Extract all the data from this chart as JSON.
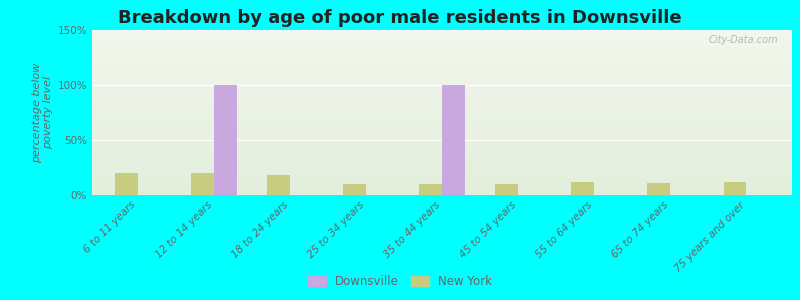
{
  "title": "Breakdown by age of poor male residents in Downsville",
  "categories": [
    "6 to 11 years",
    "12 to 14 years",
    "18 to 24 years",
    "25 to 34 years",
    "35 to 44 years",
    "45 to 54 years",
    "55 to 64 years",
    "65 to 74 years",
    "75 years and over"
  ],
  "downsville_values": [
    0,
    100,
    0,
    0,
    100,
    0,
    0,
    0,
    0
  ],
  "newyork_values": [
    20,
    20,
    18,
    10,
    10,
    10,
    12,
    11,
    12
  ],
  "downsville_color": "#c9a8e0",
  "newyork_color": "#c8cc80",
  "background_color": "#00ffff",
  "gradient_top": "#f0f5e8",
  "gradient_bottom": "#e0eed8",
  "ylim": [
    0,
    150
  ],
  "yticks": [
    0,
    50,
    100,
    150
  ],
  "ytick_labels": [
    "0%",
    "50%",
    "100%",
    "150%"
  ],
  "ylabel": "percentage below\npoverty level",
  "bar_width": 0.3,
  "legend_labels": [
    "Downsville",
    "New York"
  ],
  "title_fontsize": 13,
  "axis_label_fontsize": 8,
  "tick_fontsize": 7.5,
  "text_color": "#666666",
  "watermark": "City-Data.com"
}
